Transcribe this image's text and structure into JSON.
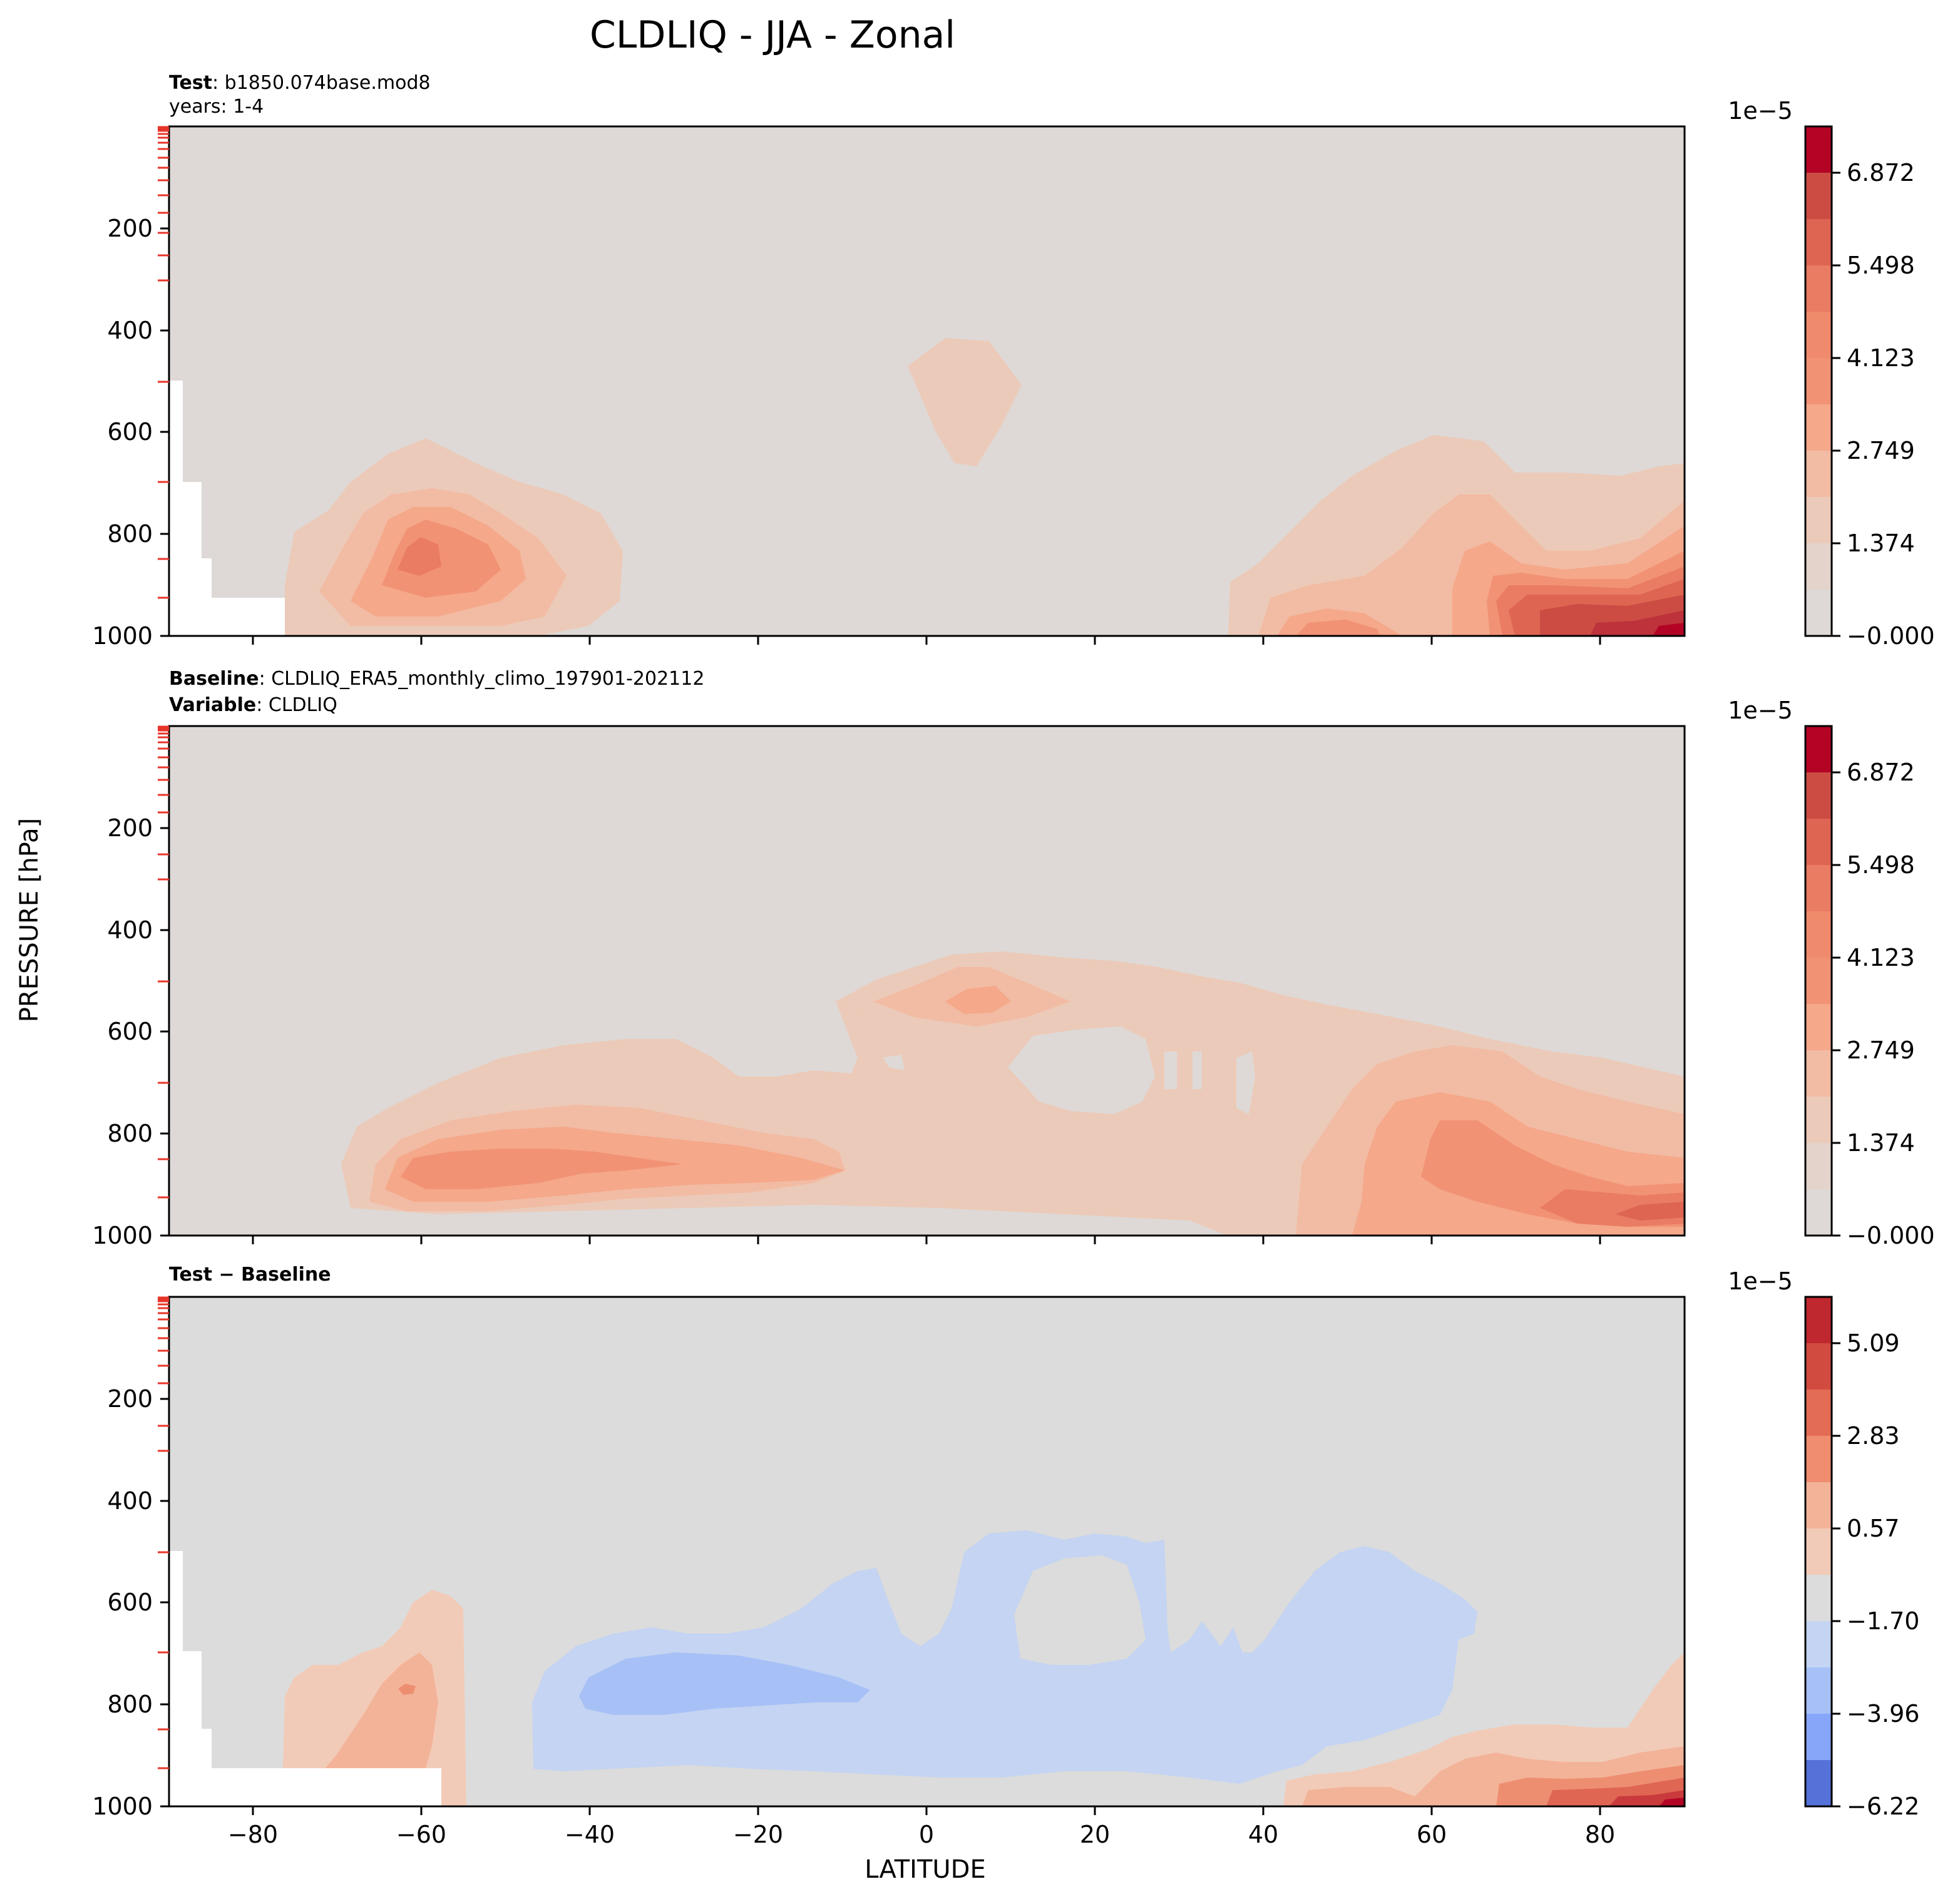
{
  "figure": {
    "title": "CLDLIQ - JJA - Zonal",
    "ylabel": "PRESSURE [hPa]",
    "xlabel": "LATITUDE"
  },
  "panels": [
    {
      "hdr_line1_bold": "Test",
      "hdr_line1_text": ": b1850.074base.mod8",
      "hdr_line2_bold": "",
      "hdr_line2_text": "years: 1-4",
      "colorbar": {
        "exponent": "1e−5",
        "ticks": [
          "6.872",
          "5.498",
          "4.123",
          "2.749",
          "1.374",
          "−0.000"
        ]
      }
    },
    {
      "hdr_line1_bold": "Baseline",
      "hdr_line1_text": ": CLDLIQ_ERA5_monthly_climo_197901-202112",
      "hdr_line2_bold": "Variable",
      "hdr_line2_text": ": CLDLIQ",
      "colorbar": {
        "exponent": "1e−5",
        "ticks": [
          "6.872",
          "5.498",
          "4.123",
          "2.749",
          "1.374",
          "−0.000"
        ]
      }
    },
    {
      "hdr_line1_bold": "Test − Baseline",
      "hdr_line1_text": "",
      "hdr_line2_bold": "",
      "hdr_line2_text": "",
      "colorbar": {
        "exponent": "1e−5",
        "ticks": [
          "5.09",
          "2.83",
          "0.57",
          "−1.70",
          "−3.96",
          "−6.22"
        ]
      }
    }
  ],
  "chart_data": [
    {
      "type": "heatmap",
      "title": "Test",
      "xlim": [
        -90,
        90
      ],
      "ylim": [
        1000,
        0
      ],
      "x_ticks": [
        "−80",
        "−60",
        "−40",
        "−20",
        "0",
        "20",
        "40",
        "60",
        "80"
      ],
      "y_ticks": [
        "200",
        "400",
        "600",
        "800",
        "1000"
      ],
      "colorbar_levels": [
        0,
        0.687,
        1.374,
        2.061,
        2.749,
        3.436,
        4.123,
        4.81,
        5.498,
        6.185,
        6.872,
        7.559
      ],
      "colors": [
        "#ded9d6",
        "#eccab9",
        "#f2bba3",
        "#f5a88a",
        "#f29274",
        "#e97c62",
        "#dd6551",
        "#cc4c44",
        "#bd323b",
        "#b40426"
      ],
      "approx_features": [
        {
          "desc": "SH midlatitude low cloud",
          "lat": [
            -75,
            -40
          ],
          "pressure": [
            1000,
            600
          ],
          "peak": 4.8
        },
        {
          "desc": "Tropical mid-level",
          "lat": [
            -3,
            12
          ],
          "pressure": [
            670,
            430
          ],
          "peak": 0.9
        },
        {
          "desc": "NH high-latitude low cloud",
          "lat": [
            36,
            90
          ],
          "pressure": [
            1000,
            600
          ],
          "peak": 7.3
        }
      ]
    },
    {
      "type": "heatmap",
      "title": "Baseline",
      "xlim": [
        -90,
        90
      ],
      "ylim": [
        1000,
        0
      ],
      "x_ticks": [
        "−80",
        "−60",
        "−40",
        "−20",
        "0",
        "20",
        "40",
        "60",
        "80"
      ],
      "y_ticks": [
        "200",
        "400",
        "600",
        "800",
        "1000"
      ],
      "colorbar_levels": [
        0,
        0.687,
        1.374,
        2.061,
        2.749,
        3.436,
        4.123,
        4.81,
        5.498,
        6.185,
        6.872,
        7.559
      ],
      "approx_features": [
        {
          "desc": "SH low cloud band",
          "lat": [
            -70,
            -10
          ],
          "pressure": [
            1000,
            640
          ],
          "peak": 3.2
        },
        {
          "desc": "Tropical mid-level",
          "lat": [
            -10,
            30
          ],
          "pressure": [
            700,
            430
          ],
          "peak": 3.2
        },
        {
          "desc": "NH low cloud",
          "lat": [
            20,
            90
          ],
          "pressure": [
            1000,
            640
          ],
          "peak": 4.5
        }
      ]
    },
    {
      "type": "heatmap",
      "title": "Test − Baseline",
      "xlim": [
        -90,
        90
      ],
      "ylim": [
        1000,
        0
      ],
      "x_ticks": [
        "−80",
        "−60",
        "−40",
        "−20",
        "0",
        "20",
        "40",
        "60",
        "80"
      ],
      "y_ticks": [
        "200",
        "400",
        "600",
        "800",
        "1000"
      ],
      "colorbar_levels": [
        -6.22,
        -5.09,
        -3.96,
        -2.83,
        -1.7,
        -0.57,
        0.57,
        1.7,
        2.83,
        3.96,
        5.09,
        6.22
      ],
      "approx_features": [
        {
          "desc": "SH positive anomaly",
          "lat": [
            -76,
            -55
          ],
          "pressure": [
            1000,
            640
          ],
          "peak": 2.5
        },
        {
          "desc": "Broad negative anomaly",
          "lat": [
            -46,
            66
          ],
          "pressure": [
            960,
            470
          ],
          "peak": -2.5
        },
        {
          "desc": "NH polar positive anomaly",
          "lat": [
            40,
            90
          ],
          "pressure": [
            1000,
            760
          ],
          "peak": 5.5
        }
      ]
    }
  ]
}
